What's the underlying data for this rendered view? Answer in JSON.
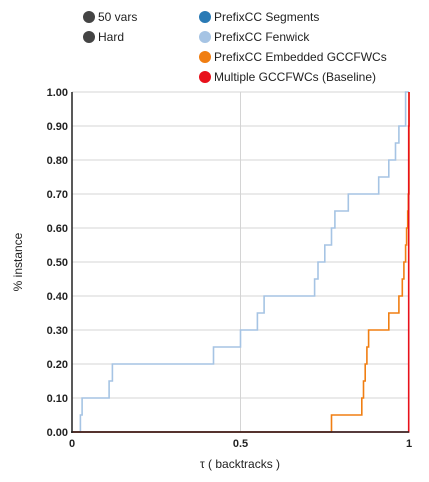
{
  "legend": {
    "filters": [
      {
        "label": "50 vars",
        "color": "#444444"
      },
      {
        "label": "Hard",
        "color": "#444444"
      }
    ],
    "series": [
      {
        "label": "PrefixCC Segments",
        "color": "#2a7ab5"
      },
      {
        "label": "PrefixCC Fenwick",
        "color": "#a6c4e4"
      },
      {
        "label": "PrefixCC Embedded GCCFWCs",
        "color": "#f07e12"
      },
      {
        "label": "Multiple GCCFWCs (Baseline)",
        "color": "#e8111b"
      }
    ]
  },
  "chart_data": {
    "type": "line",
    "xlabel": "τ ( backtracks )",
    "ylabel": "% instance",
    "xlim": [
      0,
      1
    ],
    "ylim": [
      0,
      1
    ],
    "x_ticks": [
      "0",
      "0.5",
      "1"
    ],
    "x_tick_values": [
      0,
      0.5,
      1
    ],
    "y_ticks": [
      "0.00",
      "0.10",
      "0.20",
      "0.30",
      "0.40",
      "0.50",
      "0.60",
      "0.70",
      "0.80",
      "0.90",
      "1.00"
    ],
    "y_tick_values": [
      0,
      0.1,
      0.2,
      0.3,
      0.4,
      0.5,
      0.6,
      0.7,
      0.8,
      0.9,
      1.0
    ],
    "grid": true,
    "step": true,
    "series": [
      {
        "name": "PrefixCC Fenwick",
        "color": "#a6c4e4",
        "points": [
          [
            0,
            0
          ],
          [
            0.025,
            0
          ],
          [
            0.025,
            0.05
          ],
          [
            0.03,
            0.05
          ],
          [
            0.03,
            0.1
          ],
          [
            0.11,
            0.1
          ],
          [
            0.11,
            0.15
          ],
          [
            0.12,
            0.15
          ],
          [
            0.12,
            0.2
          ],
          [
            0.42,
            0.2
          ],
          [
            0.42,
            0.25
          ],
          [
            0.5,
            0.25
          ],
          [
            0.5,
            0.3
          ],
          [
            0.55,
            0.3
          ],
          [
            0.55,
            0.35
          ],
          [
            0.57,
            0.35
          ],
          [
            0.57,
            0.4
          ],
          [
            0.72,
            0.4
          ],
          [
            0.72,
            0.45
          ],
          [
            0.73,
            0.45
          ],
          [
            0.73,
            0.5
          ],
          [
            0.75,
            0.5
          ],
          [
            0.75,
            0.55
          ],
          [
            0.77,
            0.55
          ],
          [
            0.77,
            0.6
          ],
          [
            0.78,
            0.6
          ],
          [
            0.78,
            0.65
          ],
          [
            0.82,
            0.65
          ],
          [
            0.82,
            0.7
          ],
          [
            0.91,
            0.7
          ],
          [
            0.91,
            0.75
          ],
          [
            0.94,
            0.75
          ],
          [
            0.94,
            0.8
          ],
          [
            0.96,
            0.8
          ],
          [
            0.96,
            0.85
          ],
          [
            0.97,
            0.85
          ],
          [
            0.97,
            0.9
          ],
          [
            0.99,
            0.9
          ],
          [
            0.99,
            1.0
          ],
          [
            1.0,
            1.0
          ]
        ]
      },
      {
        "name": "PrefixCC Embedded GCCFWCs",
        "color": "#f07e12",
        "points": [
          [
            0,
            0
          ],
          [
            0.77,
            0
          ],
          [
            0.77,
            0.05
          ],
          [
            0.86,
            0.05
          ],
          [
            0.86,
            0.1
          ],
          [
            0.865,
            0.1
          ],
          [
            0.865,
            0.15
          ],
          [
            0.87,
            0.15
          ],
          [
            0.87,
            0.2
          ],
          [
            0.875,
            0.2
          ],
          [
            0.875,
            0.25
          ],
          [
            0.88,
            0.25
          ],
          [
            0.88,
            0.3
          ],
          [
            0.94,
            0.3
          ],
          [
            0.94,
            0.35
          ],
          [
            0.97,
            0.35
          ],
          [
            0.97,
            0.4
          ],
          [
            0.98,
            0.4
          ],
          [
            0.98,
            0.45
          ],
          [
            0.985,
            0.45
          ],
          [
            0.985,
            0.5
          ],
          [
            0.99,
            0.5
          ],
          [
            0.99,
            0.55
          ],
          [
            0.993,
            0.55
          ],
          [
            0.993,
            0.6
          ],
          [
            0.996,
            0.6
          ],
          [
            0.996,
            0.65
          ],
          [
            0.998,
            0.65
          ],
          [
            0.998,
            0.7
          ],
          [
            1.0,
            0.7
          ],
          [
            1.0,
            1.0
          ]
        ]
      },
      {
        "name": "Multiple GCCFWCs (Baseline)",
        "color": "#e8111b",
        "points": [
          [
            0,
            0
          ],
          [
            0.999,
            0
          ],
          [
            0.999,
            0.9
          ],
          [
            1.0,
            0.9
          ],
          [
            1.0,
            1.0
          ]
        ]
      }
    ]
  }
}
